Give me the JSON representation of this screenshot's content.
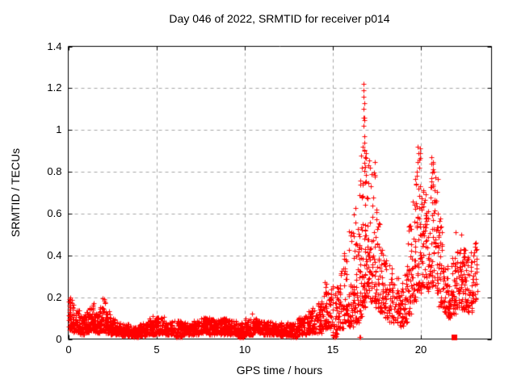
{
  "chart_data": {
    "type": "scatter",
    "title": "Day 046 of 2022, SRMTID for receiver p014",
    "xlabel": "GPS time / hours",
    "ylabel": "SRMTID / TECUs",
    "xlim": [
      0,
      24
    ],
    "ylim": [
      0,
      1.4
    ],
    "xticks": [
      0,
      5,
      10,
      15,
      20
    ],
    "xtick_labels": [
      "0",
      "5",
      "10",
      "15",
      "20"
    ],
    "yticks": [
      0,
      0.2,
      0.4,
      0.6,
      0.8,
      1,
      1.2,
      1.4
    ],
    "ytick_labels": [
      "0",
      "0.2",
      "0.4",
      "0.6",
      "0.8",
      "1",
      "1.2",
      "1.4"
    ],
    "grid": true,
    "grid_style": "dashed",
    "legend": "none",
    "marker": "plus",
    "marker_color": "#ff0000",
    "grid_color": "#a6a6a6",
    "axis_color": "#000000",
    "background_color": "#ffffff",
    "bucket_format": [
      "hour_start",
      "hour_end",
      "y_min",
      "y_max",
      "n_points",
      "bottom_bias_exponent"
    ],
    "envelope_buckets": [
      [
        0.0,
        0.3,
        0.04,
        0.2,
        45,
        1.6
      ],
      [
        0.3,
        0.6,
        0.03,
        0.14,
        45,
        1.5
      ],
      [
        0.6,
        0.9,
        0.02,
        0.11,
        45,
        1.4
      ],
      [
        0.9,
        1.2,
        0.03,
        0.13,
        45,
        1.5
      ],
      [
        1.2,
        1.5,
        0.04,
        0.17,
        45,
        1.6
      ],
      [
        1.5,
        1.8,
        0.03,
        0.13,
        45,
        1.5
      ],
      [
        1.8,
        2.1,
        0.04,
        0.19,
        45,
        1.7
      ],
      [
        2.1,
        2.4,
        0.03,
        0.14,
        45,
        1.5
      ],
      [
        2.4,
        2.7,
        0.02,
        0.1,
        45,
        1.4
      ],
      [
        2.7,
        3.0,
        0.02,
        0.08,
        45,
        1.3
      ],
      [
        3.0,
        3.5,
        0.015,
        0.07,
        70,
        1.3
      ],
      [
        3.5,
        4.0,
        0.01,
        0.06,
        70,
        1.3
      ],
      [
        4.0,
        4.5,
        0.015,
        0.075,
        70,
        1.3
      ],
      [
        4.5,
        5.0,
        0.02,
        0.1,
        70,
        1.4
      ],
      [
        5.0,
        5.5,
        0.025,
        0.105,
        70,
        1.4
      ],
      [
        5.5,
        6.0,
        0.02,
        0.085,
        70,
        1.3
      ],
      [
        6.0,
        6.5,
        0.01,
        0.09,
        70,
        1.3
      ],
      [
        6.5,
        7.0,
        0.02,
        0.08,
        70,
        1.3
      ],
      [
        7.0,
        7.5,
        0.02,
        0.09,
        70,
        1.3
      ],
      [
        7.5,
        8.0,
        0.03,
        0.105,
        70,
        1.4
      ],
      [
        8.0,
        8.5,
        0.02,
        0.095,
        70,
        1.3
      ],
      [
        8.5,
        9.0,
        0.02,
        0.1,
        70,
        1.4
      ],
      [
        9.0,
        9.5,
        0.02,
        0.09,
        70,
        1.3
      ],
      [
        9.5,
        10.0,
        0.01,
        0.08,
        70,
        1.3
      ],
      [
        10.0,
        10.5,
        0.02,
        0.1,
        70,
        1.4
      ],
      [
        10.5,
        11.0,
        0.03,
        0.1,
        70,
        1.4
      ],
      [
        11.0,
        11.5,
        0.02,
        0.085,
        70,
        1.3
      ],
      [
        11.5,
        12.0,
        0.02,
        0.08,
        70,
        1.3
      ],
      [
        12.0,
        12.5,
        0.015,
        0.08,
        70,
        1.3
      ],
      [
        12.5,
        13.0,
        0.01,
        0.075,
        70,
        1.3
      ],
      [
        13.0,
        13.5,
        0.02,
        0.11,
        65,
        1.4
      ],
      [
        13.5,
        14.0,
        0.03,
        0.15,
        65,
        1.5
      ],
      [
        14.0,
        14.5,
        0.03,
        0.18,
        60,
        1.6
      ],
      [
        14.5,
        15.0,
        0.05,
        0.28,
        60,
        1.8
      ],
      [
        15.0,
        15.3,
        0.01,
        0.26,
        35,
        1.6
      ],
      [
        15.3,
        15.6,
        0.05,
        0.33,
        35,
        1.7
      ],
      [
        15.6,
        15.9,
        0.08,
        0.42,
        35,
        1.8
      ],
      [
        15.9,
        16.2,
        0.06,
        0.52,
        40,
        1.9
      ],
      [
        16.2,
        16.5,
        0.08,
        0.72,
        45,
        2.0
      ],
      [
        16.5,
        16.7,
        0.1,
        0.88,
        40,
        2.0
      ],
      [
        16.7,
        16.85,
        0.15,
        1.08,
        40,
        2.4
      ],
      [
        16.85,
        17.1,
        0.2,
        0.92,
        42,
        1.8
      ],
      [
        17.1,
        17.4,
        0.18,
        0.88,
        40,
        1.8
      ],
      [
        17.4,
        17.65,
        0.15,
        0.62,
        34,
        1.8
      ],
      [
        17.65,
        17.9,
        0.13,
        0.46,
        32,
        1.7
      ],
      [
        17.9,
        18.2,
        0.1,
        0.38,
        32,
        1.6
      ],
      [
        18.2,
        18.5,
        0.08,
        0.34,
        30,
        1.6
      ],
      [
        18.5,
        18.75,
        0.08,
        0.3,
        28,
        1.5
      ],
      [
        18.75,
        19.0,
        0.05,
        0.28,
        28,
        1.5
      ],
      [
        19.0,
        19.25,
        0.08,
        0.36,
        28,
        1.6
      ],
      [
        19.25,
        19.5,
        0.12,
        0.55,
        32,
        1.7
      ],
      [
        19.5,
        19.75,
        0.18,
        0.8,
        38,
        1.6
      ],
      [
        19.75,
        20.0,
        0.22,
        0.92,
        44,
        1.5
      ],
      [
        20.0,
        20.25,
        0.25,
        0.78,
        36,
        1.6
      ],
      [
        20.25,
        20.5,
        0.22,
        0.62,
        32,
        1.6
      ],
      [
        20.5,
        20.75,
        0.25,
        0.87,
        38,
        1.5
      ],
      [
        20.75,
        21.0,
        0.22,
        0.78,
        36,
        1.6
      ],
      [
        21.0,
        21.25,
        0.15,
        0.58,
        30,
        1.7
      ],
      [
        21.25,
        21.5,
        0.12,
        0.35,
        30,
        1.5
      ],
      [
        21.5,
        21.75,
        0.1,
        0.3,
        32,
        1.4
      ],
      [
        21.75,
        22.0,
        0.12,
        0.4,
        32,
        1.5
      ],
      [
        22.0,
        22.3,
        0.15,
        0.47,
        42,
        1.5
      ],
      [
        22.3,
        22.6,
        0.14,
        0.45,
        42,
        1.5
      ],
      [
        22.6,
        22.9,
        0.13,
        0.42,
        36,
        1.5
      ],
      [
        22.9,
        23.2,
        0.18,
        0.47,
        26,
        1.4
      ]
    ],
    "notable_points": [
      [
        16.74,
        1.22
      ],
      [
        16.76,
        1.19
      ],
      [
        16.75,
        1.16
      ],
      [
        16.77,
        1.13
      ],
      [
        16.74,
        1.1
      ],
      [
        16.78,
        1.06
      ],
      [
        16.72,
        1.02
      ],
      [
        16.8,
        0.97
      ],
      [
        16.7,
        0.92
      ],
      [
        16.82,
        0.87
      ],
      [
        19.82,
        0.92
      ],
      [
        19.86,
        0.89
      ],
      [
        19.9,
        0.86
      ],
      [
        20.6,
        0.87
      ],
      [
        20.66,
        0.84
      ],
      [
        20.72,
        0.8
      ],
      [
        21.95,
        0.51
      ],
      [
        22.3,
        0.5
      ],
      [
        0.05,
        0.19
      ],
      [
        1.42,
        0.17
      ],
      [
        1.95,
        0.195
      ],
      [
        4.78,
        0.11
      ],
      [
        10.4,
        0.12
      ],
      [
        14.55,
        0.27
      ],
      [
        15.65,
        0.4
      ],
      [
        23.1,
        0.46
      ],
      [
        23.15,
        0.43
      ]
    ],
    "zero_touch_points": [
      [
        6.12,
        0.01
      ],
      [
        9.72,
        0.008
      ],
      [
        9.85,
        0.008
      ],
      [
        12.75,
        0.008
      ],
      [
        15.12,
        0.02
      ],
      [
        16.52,
        0.008
      ],
      [
        16.58,
        0.008
      ]
    ],
    "special_square_point": {
      "x": 21.87,
      "y": 0.01,
      "marker": "filled-square"
    }
  }
}
